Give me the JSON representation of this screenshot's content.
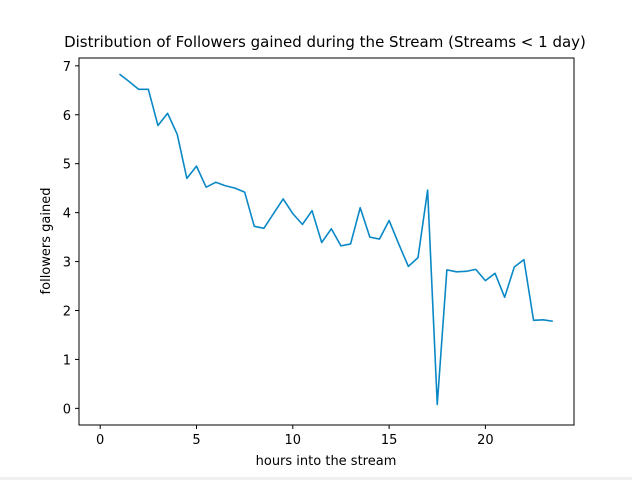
{
  "chart_data": {
    "type": "line",
    "title": "Distribution of Followers gained during the Stream (Streams < 1 day)",
    "xlabel": "hours into the stream",
    "ylabel": "followers gained",
    "xlim": [
      -1.1,
      24.6
    ],
    "ylim": [
      -0.34,
      7.16
    ],
    "xticks": [
      0,
      5,
      10,
      15,
      20
    ],
    "yticks": [
      0,
      1,
      2,
      3,
      4,
      5,
      6,
      7
    ],
    "grid": false,
    "line_color": "#0a88c6",
    "series": [
      {
        "x": [
          1.0,
          1.5,
          2.0,
          2.5,
          3.0,
          3.5,
          4.0,
          4.5,
          5.0,
          5.5,
          6.0,
          6.5,
          7.0,
          7.5,
          8.0,
          8.5,
          9.0,
          9.5,
          10.0,
          10.5,
          11.0,
          11.5,
          12.0,
          12.5,
          13.0,
          13.5,
          14.0,
          14.5,
          15.0,
          15.5,
          16.0,
          16.5,
          17.0,
          17.5,
          18.0,
          18.5,
          19.0,
          19.5,
          20.0,
          20.5,
          21.0,
          21.5,
          22.0,
          22.5,
          23.0,
          23.5
        ],
        "values": [
          6.83,
          6.68,
          6.52,
          6.52,
          5.78,
          6.03,
          5.6,
          4.7,
          4.95,
          4.52,
          4.62,
          4.55,
          4.5,
          4.42,
          3.72,
          3.68,
          3.98,
          4.28,
          3.98,
          3.76,
          4.04,
          3.39,
          3.67,
          3.32,
          3.36,
          4.1,
          3.5,
          3.46,
          3.84,
          3.36,
          2.9,
          3.08,
          4.46,
          0.08,
          2.83,
          2.79,
          2.8,
          2.84,
          2.61,
          2.76,
          2.27,
          2.89,
          3.04,
          1.8,
          1.81,
          1.78
        ]
      }
    ]
  }
}
